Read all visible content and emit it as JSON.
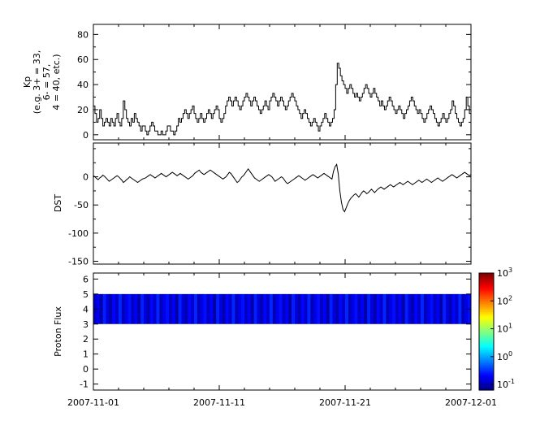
{
  "figure": {
    "background": "#ffffff",
    "line_color": "#000000",
    "band_low_color": "#00008f"
  },
  "x_axis": {
    "start": "2007-11-01",
    "end": "2007-12-01",
    "tick_labels": [
      "2007-11-01",
      "2007-11-11",
      "2007-11-21",
      "2007-12-01"
    ],
    "tick_days": [
      0,
      10,
      20,
      30
    ],
    "total_days": 30,
    "minor_tick_every_days": 2
  },
  "chart_data": [
    {
      "type": "line",
      "style": "step",
      "name": "kp-index",
      "ylabel_lines": [
        "Kp",
        "(e.g. 3+ = 33,",
        "6- = 57,",
        "4 = 40, etc.)"
      ],
      "ylim": [
        -4,
        88
      ],
      "yticks": [
        0,
        20,
        40,
        60,
        80
      ],
      "yminor_step": 10,
      "values": [
        23,
        17,
        10,
        13,
        20,
        13,
        7,
        10,
        13,
        10,
        7,
        13,
        10,
        7,
        13,
        17,
        10,
        7,
        13,
        27,
        20,
        13,
        10,
        7,
        13,
        10,
        17,
        13,
        10,
        7,
        3,
        7,
        7,
        3,
        0,
        3,
        7,
        10,
        7,
        3,
        3,
        0,
        0,
        3,
        0,
        0,
        3,
        7,
        7,
        3,
        3,
        0,
        3,
        7,
        13,
        10,
        13,
        17,
        20,
        17,
        13,
        17,
        20,
        23,
        17,
        13,
        10,
        13,
        17,
        13,
        10,
        13,
        17,
        20,
        17,
        13,
        17,
        20,
        23,
        20,
        13,
        10,
        13,
        17,
        23,
        27,
        30,
        27,
        23,
        27,
        30,
        27,
        23,
        20,
        23,
        27,
        30,
        33,
        30,
        27,
        23,
        27,
        30,
        27,
        23,
        20,
        17,
        20,
        23,
        27,
        23,
        20,
        27,
        30,
        33,
        30,
        27,
        23,
        27,
        30,
        27,
        23,
        20,
        23,
        27,
        30,
        33,
        30,
        27,
        23,
        20,
        17,
        13,
        17,
        20,
        17,
        13,
        10,
        7,
        10,
        13,
        10,
        7,
        3,
        7,
        10,
        13,
        17,
        13,
        10,
        7,
        10,
        13,
        20,
        40,
        57,
        53,
        47,
        43,
        40,
        37,
        33,
        37,
        40,
        37,
        33,
        30,
        33,
        30,
        27,
        30,
        33,
        37,
        40,
        37,
        33,
        30,
        33,
        37,
        33,
        30,
        27,
        23,
        27,
        23,
        20,
        23,
        27,
        30,
        27,
        23,
        20,
        17,
        20,
        23,
        20,
        17,
        13,
        17,
        20,
        23,
        27,
        30,
        27,
        23,
        20,
        17,
        20,
        17,
        13,
        10,
        13,
        17,
        20,
        23,
        20,
        17,
        13,
        10,
        7,
        10,
        13,
        17,
        13,
        10,
        13,
        17,
        20,
        27,
        23,
        17,
        13,
        10,
        7,
        10,
        13,
        20,
        30,
        23,
        17
      ]
    },
    {
      "type": "line",
      "style": "line",
      "name": "dst-index",
      "ylabel_lines": [
        "DST"
      ],
      "ylim": [
        -155,
        60
      ],
      "yticks": [
        0,
        -50,
        -100,
        -150
      ],
      "yminor_step": 25,
      "values": [
        2,
        0,
        -3,
        -5,
        -2,
        0,
        3,
        1,
        -2,
        -5,
        -8,
        -6,
        -4,
        -2,
        0,
        2,
        0,
        -3,
        -6,
        -10,
        -8,
        -5,
        -3,
        0,
        -2,
        -4,
        -6,
        -8,
        -10,
        -8,
        -6,
        -4,
        -3,
        -2,
        0,
        2,
        4,
        2,
        0,
        -2,
        0,
        2,
        4,
        6,
        4,
        2,
        0,
        2,
        4,
        6,
        8,
        6,
        4,
        2,
        4,
        6,
        4,
        2,
        0,
        -2,
        -4,
        -2,
        0,
        2,
        6,
        8,
        10,
        12,
        8,
        6,
        4,
        6,
        8,
        10,
        12,
        10,
        8,
        6,
        4,
        2,
        0,
        -2,
        -4,
        -2,
        0,
        4,
        8,
        6,
        2,
        -2,
        -6,
        -10,
        -8,
        -4,
        0,
        2,
        6,
        10,
        14,
        10,
        6,
        2,
        -2,
        -4,
        -6,
        -8,
        -6,
        -4,
        -2,
        0,
        2,
        4,
        2,
        0,
        -4,
        -8,
        -6,
        -4,
        -2,
        0,
        -2,
        -6,
        -10,
        -12,
        -10,
        -8,
        -6,
        -4,
        -2,
        0,
        2,
        0,
        -2,
        -4,
        -6,
        -4,
        -2,
        0,
        2,
        4,
        2,
        0,
        -2,
        0,
        2,
        4,
        6,
        4,
        2,
        0,
        -2,
        -4,
        10,
        18,
        22,
        5,
        -25,
        -45,
        -58,
        -62,
        -55,
        -48,
        -42,
        -38,
        -35,
        -32,
        -30,
        -33,
        -36,
        -32,
        -28,
        -25,
        -27,
        -30,
        -28,
        -25,
        -22,
        -25,
        -28,
        -25,
        -22,
        -20,
        -18,
        -20,
        -22,
        -20,
        -18,
        -16,
        -14,
        -16,
        -18,
        -16,
        -14,
        -12,
        -10,
        -12,
        -14,
        -12,
        -10,
        -8,
        -10,
        -12,
        -14,
        -12,
        -10,
        -8,
        -6,
        -8,
        -10,
        -8,
        -6,
        -4,
        -6,
        -8,
        -10,
        -8,
        -6,
        -4,
        -2,
        -4,
        -6,
        -8,
        -6,
        -4,
        -2,
        0,
        2,
        4,
        2,
        0,
        -2,
        0,
        2,
        4,
        6,
        8,
        6,
        4,
        2,
        4
      ]
    },
    {
      "type": "heatmap",
      "name": "proton-flux",
      "ylabel_lines": [
        "Proton Flux"
      ],
      "ylim": [
        -1.4,
        6.4
      ],
      "yticks": [
        6,
        5,
        4,
        3,
        2,
        1,
        0,
        -1
      ],
      "band_y": [
        3,
        5
      ],
      "values": [
        0.12,
        0.2,
        0.09,
        0.28,
        0.15,
        0.1,
        0.22,
        0.13,
        0.3,
        0.11,
        0.17,
        0.24,
        0.12,
        0.2,
        0.09,
        0.28,
        0.15,
        0.1,
        0.22,
        0.13,
        0.3,
        0.11,
        0.17,
        0.24,
        0.12,
        0.2,
        0.09,
        0.28,
        0.15,
        0.1,
        0.22,
        0.13,
        0.3,
        0.11,
        0.17,
        0.24,
        0.12,
        0.2,
        0.09,
        0.28,
        0.15,
        0.1,
        0.22,
        0.13,
        0.3,
        0.11,
        0.17,
        0.24,
        0.12,
        0.2,
        0.09,
        0.28,
        0.15,
        0.1,
        0.22,
        0.13,
        0.3,
        0.11,
        0.17,
        0.24,
        0.12,
        0.2,
        0.09,
        0.28,
        0.15,
        0.1,
        0.22,
        0.13,
        0.3,
        0.11,
        0.17,
        0.24,
        0.12,
        0.2,
        0.09,
        0.28,
        0.15,
        0.1,
        0.22,
        0.13,
        0.3,
        0.11,
        0.17,
        0.24,
        0.12,
        0.2,
        0.09,
        0.28,
        0.15,
        0.1,
        0.22,
        0.13,
        0.3,
        0.11,
        0.17,
        0.24,
        0.12,
        0.2,
        0.09,
        0.28,
        0.15,
        0.1,
        0.22,
        0.13,
        0.3,
        0.11,
        0.17,
        0.24,
        0.12,
        0.2,
        0.09,
        0.28,
        0.15,
        0.1,
        0.22,
        0.13,
        0.3,
        0.11,
        0.17,
        0.24
      ],
      "colorbar": {
        "scale": "log",
        "colormap": "jet",
        "log10_range": [
          -1.2,
          3
        ],
        "tick_exponents": [
          3,
          2,
          1,
          0,
          -1
        ],
        "tick_labels": [
          "10^3",
          "10^2",
          "10^1",
          "10^0",
          "10^-1"
        ]
      }
    }
  ]
}
